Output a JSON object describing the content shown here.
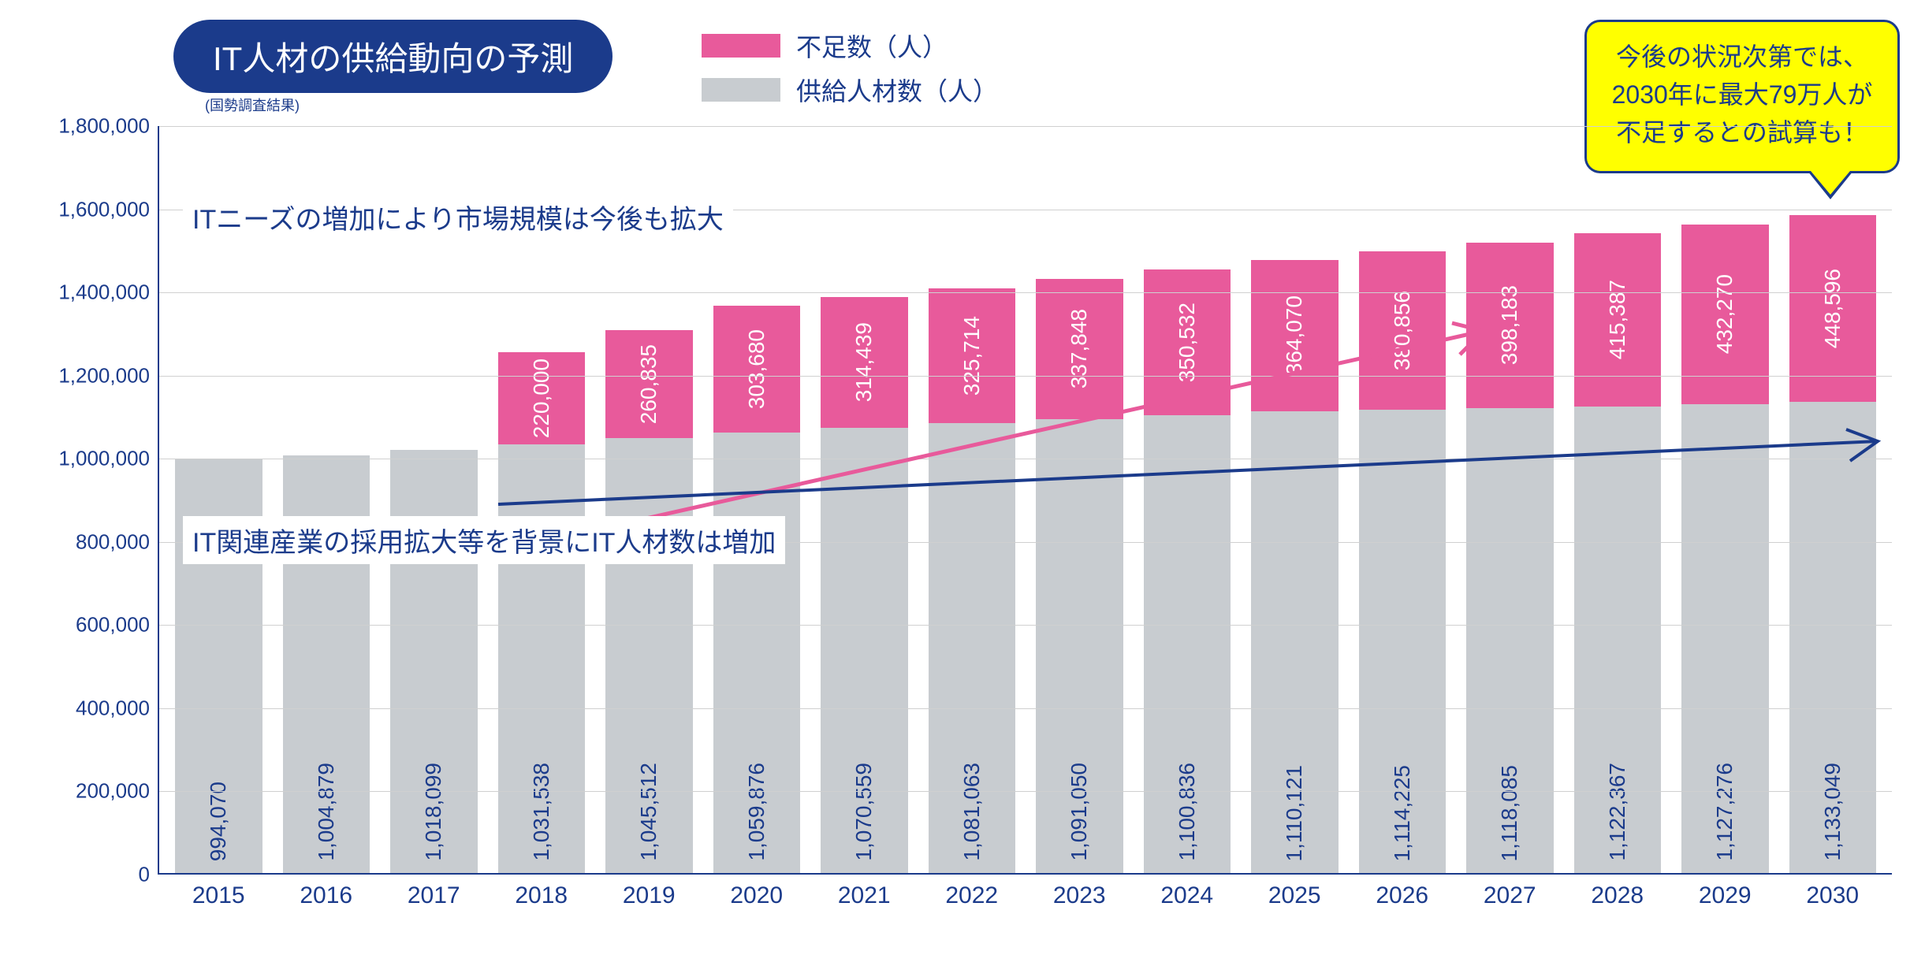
{
  "title": "IT人材の供給動向の予測",
  "subtitle": "(国勢調査結果)",
  "legend": {
    "shortage": "不足数（人）",
    "supply": "供給人材数（人）"
  },
  "callout": "今後の状況次第では、2030年に最大79万人が不足するとの試算も！",
  "annotation_top": "ITニーズの増加により市場規模は今後も拡大",
  "annotation_bottom": "IT関連産業の採用拡大等を背景にIT人材数は増加",
  "chart": {
    "type": "stacked-bar",
    "ylim": [
      0,
      1800000
    ],
    "ytick_step": 200000,
    "yticks": [
      "0",
      "200,000",
      "400,000",
      "600,000",
      "800,000",
      "1,000,000",
      "1,200,000",
      "1,400,000",
      "1,600,000",
      "1,800,000"
    ],
    "colors": {
      "shortage": "#e85a9b",
      "supply": "#c8ccd0",
      "axis": "#1b3b8b",
      "grid": "#d0d0d0",
      "text": "#1b3b8b",
      "arrow_top": "#e85a9b",
      "arrow_bottom": "#1b3b8b"
    },
    "font_size_axis": 26,
    "font_size_bar_label": 28,
    "years": [
      "2015",
      "2016",
      "2017",
      "2018",
      "2019",
      "2020",
      "2021",
      "2022",
      "2023",
      "2024",
      "2025",
      "2026",
      "2027",
      "2028",
      "2029",
      "2030"
    ],
    "supply": [
      994070,
      1004879,
      1018099,
      1031538,
      1045512,
      1059876,
      1070559,
      1081063,
      1091050,
      1100836,
      1110121,
      1114225,
      1118085,
      1122367,
      1127276,
      1133049
    ],
    "supply_labels": [
      "994,070",
      "1,004,879",
      "1,018,099",
      "1,031,538",
      "1,045,512",
      "1,059,876",
      "1,070,559",
      "1,081,063",
      "1,091,050",
      "1,100,836",
      "1,110,121",
      "1,114,225",
      "1,118,085",
      "1,122,367",
      "1,127,276",
      "1,133,049"
    ],
    "shortage": [
      0,
      0,
      0,
      220000,
      260835,
      303680,
      314439,
      325714,
      337848,
      350532,
      364070,
      380856,
      398183,
      415387,
      432270,
      448596
    ],
    "shortage_labels": [
      "",
      "",
      "",
      "220,000",
      "260,835",
      "303,680",
      "314,439",
      "325,714",
      "337,848",
      "350,532",
      "364,070",
      "380,856",
      "398,183",
      "415,387",
      "432,270",
      "448,596"
    ]
  }
}
